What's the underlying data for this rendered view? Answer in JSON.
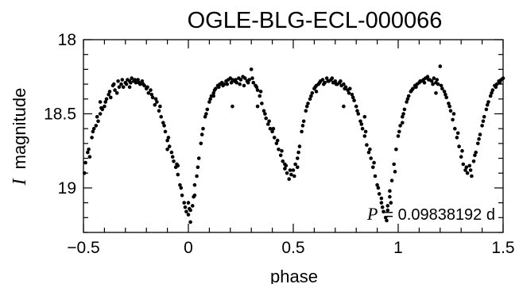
{
  "chart_data": {
    "type": "scatter",
    "title": "OGLE-BLG-ECL-000066",
    "xlabel": "phase",
    "ylabel_symbol": "I",
    "ylabel_text": "magnitude",
    "xlim": [
      -0.5,
      1.5
    ],
    "ylim": [
      19.3,
      18.0
    ],
    "y_inverted": true,
    "xticks": [
      -0.5,
      0,
      0.5,
      1,
      1.5
    ],
    "xtick_labels": [
      "−0.5",
      "0",
      "0.5",
      "1",
      "1.5"
    ],
    "yticks": [
      18,
      18.5,
      19
    ],
    "ytick_labels": [
      "18",
      "18.5",
      "19"
    ],
    "annotation": {
      "symbol": "P",
      "text": "= 0.09838192 d"
    },
    "grid": false,
    "marker_color": "#000000",
    "points": [
      [
        -0.49,
        18.83
      ],
      [
        -0.48,
        18.76
      ],
      [
        -0.47,
        18.79
      ],
      [
        -0.46,
        18.66
      ],
      [
        -0.45,
        18.6
      ],
      [
        -0.44,
        18.58
      ],
      [
        -0.43,
        18.55
      ],
      [
        -0.42,
        18.5
      ],
      [
        -0.41,
        18.47
      ],
      [
        -0.4,
        18.45
      ],
      [
        -0.39,
        18.4
      ],
      [
        -0.38,
        18.37
      ],
      [
        -0.37,
        18.39
      ],
      [
        -0.36,
        18.31
      ],
      [
        -0.35,
        18.34
      ],
      [
        -0.34,
        18.36
      ],
      [
        -0.33,
        18.32
      ],
      [
        -0.32,
        18.3
      ],
      [
        -0.31,
        18.32
      ],
      [
        -0.3,
        18.29
      ],
      [
        -0.29,
        18.27
      ],
      [
        -0.28,
        18.28
      ],
      [
        -0.27,
        18.26
      ],
      [
        -0.26,
        18.28
      ],
      [
        -0.25,
        18.29
      ],
      [
        -0.24,
        18.27
      ],
      [
        -0.23,
        18.3
      ],
      [
        -0.22,
        18.28
      ],
      [
        -0.21,
        18.31
      ],
      [
        -0.2,
        18.33
      ],
      [
        -0.19,
        18.36
      ],
      [
        -0.18,
        18.34
      ],
      [
        -0.17,
        18.39
      ],
      [
        -0.16,
        18.44
      ],
      [
        -0.15,
        18.42
      ],
      [
        -0.14,
        18.48
      ],
      [
        -0.13,
        18.52
      ],
      [
        -0.12,
        18.56
      ],
      [
        -0.11,
        18.62
      ],
      [
        -0.1,
        18.68
      ],
      [
        -0.09,
        18.72
      ],
      [
        -0.08,
        18.76
      ],
      [
        -0.07,
        18.82
      ],
      [
        -0.06,
        18.86
      ],
      [
        -0.05,
        18.91
      ],
      [
        -0.04,
        18.98
      ],
      [
        -0.03,
        19.05
      ],
      [
        -0.02,
        19.1
      ],
      [
        -0.01,
        19.16
      ],
      [
        0.0,
        19.18
      ],
      [
        0.01,
        19.23
      ],
      [
        0.02,
        19.12
      ],
      [
        0.03,
        19.05
      ],
      [
        0.04,
        18.92
      ],
      [
        0.05,
        18.8
      ],
      [
        0.06,
        18.7
      ],
      [
        0.07,
        18.6
      ],
      [
        0.08,
        18.52
      ],
      [
        0.09,
        18.47
      ],
      [
        0.1,
        18.42
      ],
      [
        0.11,
        18.38
      ],
      [
        0.12,
        18.36
      ],
      [
        0.13,
        18.33
      ],
      [
        0.14,
        18.31
      ],
      [
        0.15,
        18.3
      ],
      [
        0.16,
        18.29
      ],
      [
        0.17,
        18.3
      ],
      [
        0.18,
        18.28
      ],
      [
        0.19,
        18.27
      ],
      [
        0.2,
        18.26
      ],
      [
        0.21,
        18.27
      ],
      [
        0.22,
        18.28
      ],
      [
        0.23,
        18.29
      ],
      [
        0.24,
        18.26
      ],
      [
        0.25,
        18.27
      ],
      [
        0.26,
        18.25
      ],
      [
        0.27,
        18.26
      ],
      [
        0.28,
        18.28
      ],
      [
        0.29,
        18.27
      ],
      [
        0.3,
        18.2
      ],
      [
        0.31,
        18.29
      ],
      [
        0.32,
        18.31
      ],
      [
        0.33,
        18.34
      ],
      [
        0.34,
        18.38
      ],
      [
        0.35,
        18.43
      ],
      [
        0.36,
        18.48
      ],
      [
        0.37,
        18.53
      ],
      [
        0.38,
        18.57
      ],
      [
        0.39,
        18.6
      ],
      [
        0.4,
        18.62
      ],
      [
        0.41,
        18.66
      ],
      [
        0.42,
        18.7
      ],
      [
        0.43,
        18.74
      ],
      [
        0.44,
        18.78
      ],
      [
        0.45,
        18.82
      ],
      [
        0.46,
        18.87
      ],
      [
        0.47,
        18.9
      ],
      [
        0.48,
        18.94
      ],
      [
        0.49,
        18.91
      ],
      [
        0.5,
        18.88
      ],
      [
        0.51,
        18.84
      ],
      [
        0.52,
        18.8
      ],
      [
        0.53,
        18.72
      ],
      [
        0.54,
        18.62
      ],
      [
        0.55,
        18.55
      ],
      [
        0.56,
        18.48
      ],
      [
        0.57,
        18.43
      ],
      [
        0.58,
        18.4
      ],
      [
        0.59,
        18.36
      ],
      [
        0.6,
        18.33
      ],
      [
        0.61,
        18.31
      ],
      [
        0.62,
        18.3
      ],
      [
        0.63,
        18.28
      ],
      [
        0.64,
        18.27
      ],
      [
        0.65,
        18.29
      ],
      [
        0.66,
        18.26
      ],
      [
        0.67,
        18.28
      ],
      [
        0.68,
        18.27
      ],
      [
        0.69,
        18.29
      ],
      [
        0.7,
        18.28
      ],
      [
        0.71,
        18.3
      ],
      [
        0.72,
        18.29
      ],
      [
        0.73,
        18.31
      ],
      [
        0.74,
        18.3
      ],
      [
        0.75,
        18.32
      ],
      [
        0.76,
        18.34
      ],
      [
        0.77,
        18.33
      ],
      [
        0.78,
        18.37
      ],
      [
        0.79,
        18.41
      ],
      [
        0.8,
        18.45
      ],
      [
        0.81,
        18.5
      ],
      [
        0.82,
        18.55
      ],
      [
        0.83,
        18.6
      ],
      [
        0.84,
        18.65
      ],
      [
        0.85,
        18.71
      ],
      [
        0.86,
        18.76
      ],
      [
        0.87,
        18.8
      ],
      [
        0.88,
        18.86
      ],
      [
        0.89,
        18.92
      ],
      [
        0.9,
        18.98
      ],
      [
        0.91,
        19.04
      ],
      [
        0.92,
        19.1
      ],
      [
        0.93,
        19.16
      ],
      [
        0.94,
        19.2
      ],
      [
        0.95,
        19.15
      ],
      [
        0.96,
        19.06
      ],
      [
        0.97,
        18.95
      ],
      [
        0.98,
        18.84
      ],
      [
        0.99,
        18.74
      ],
      [
        1.0,
        18.65
      ],
      [
        1.01,
        18.58
      ],
      [
        1.02,
        18.52
      ],
      [
        1.03,
        18.47
      ],
      [
        1.04,
        18.42
      ],
      [
        1.05,
        18.38
      ],
      [
        1.06,
        18.35
      ],
      [
        1.07,
        18.33
      ],
      [
        1.08,
        18.31
      ],
      [
        1.09,
        18.3
      ],
      [
        1.1,
        18.29
      ],
      [
        1.11,
        18.28
      ],
      [
        1.12,
        18.27
      ],
      [
        1.13,
        18.26
      ],
      [
        1.14,
        18.25
      ],
      [
        1.15,
        18.27
      ],
      [
        1.16,
        18.28
      ],
      [
        1.17,
        18.26
      ],
      [
        1.18,
        18.29
      ],
      [
        1.19,
        18.3
      ],
      [
        1.2,
        18.18
      ],
      [
        1.21,
        18.33
      ],
      [
        1.22,
        18.35
      ],
      [
        1.23,
        18.39
      ],
      [
        1.24,
        18.43
      ],
      [
        1.25,
        18.48
      ],
      [
        1.26,
        18.54
      ],
      [
        1.27,
        18.6
      ],
      [
        1.28,
        18.66
      ],
      [
        1.29,
        18.72
      ],
      [
        1.3,
        18.79
      ],
      [
        1.31,
        18.84
      ],
      [
        1.32,
        18.88
      ],
      [
        1.33,
        18.9
      ],
      [
        1.34,
        18.85
      ],
      [
        1.35,
        18.92
      ],
      [
        1.36,
        18.82
      ],
      [
        1.37,
        18.76
      ],
      [
        1.38,
        18.7
      ],
      [
        1.39,
        18.64
      ],
      [
        1.4,
        18.58
      ],
      [
        1.41,
        18.52
      ],
      [
        1.42,
        18.47
      ],
      [
        1.43,
        18.42
      ],
      [
        1.44,
        18.38
      ],
      [
        1.45,
        18.34
      ],
      [
        1.46,
        18.31
      ],
      [
        1.47,
        18.3
      ],
      [
        1.48,
        18.28
      ],
      [
        1.49,
        18.27
      ],
      [
        1.5,
        18.26
      ],
      [
        -0.495,
        18.9
      ],
      [
        -0.475,
        18.74
      ],
      [
        -0.455,
        18.62
      ],
      [
        -0.435,
        18.52
      ],
      [
        -0.415,
        18.46
      ],
      [
        -0.395,
        18.42
      ],
      [
        -0.375,
        18.35
      ],
      [
        -0.355,
        18.3
      ],
      [
        -0.335,
        18.28
      ],
      [
        -0.315,
        18.27
      ],
      [
        -0.295,
        18.3
      ],
      [
        -0.275,
        18.29
      ],
      [
        -0.255,
        18.27
      ],
      [
        -0.235,
        18.29
      ],
      [
        -0.215,
        18.3
      ],
      [
        -0.195,
        18.32
      ],
      [
        -0.175,
        18.37
      ],
      [
        -0.155,
        18.4
      ],
      [
        -0.135,
        18.45
      ],
      [
        -0.115,
        18.58
      ],
      [
        -0.095,
        18.66
      ],
      [
        -0.075,
        18.79
      ],
      [
        -0.055,
        18.84
      ],
      [
        -0.035,
        19.0
      ],
      [
        -0.015,
        19.13
      ],
      [
        0.005,
        19.14
      ],
      [
        0.025,
        19.06
      ],
      [
        0.045,
        18.86
      ],
      [
        0.065,
        18.64
      ],
      [
        0.085,
        18.5
      ],
      [
        0.105,
        18.4
      ],
      [
        0.125,
        18.34
      ],
      [
        0.145,
        18.32
      ],
      [
        0.165,
        18.31
      ],
      [
        0.185,
        18.3
      ],
      [
        0.205,
        18.29
      ],
      [
        0.225,
        18.27
      ],
      [
        0.245,
        18.3
      ],
      [
        0.265,
        18.31
      ],
      [
        0.285,
        18.29
      ],
      [
        0.305,
        18.26
      ],
      [
        0.325,
        18.32
      ],
      [
        0.345,
        18.35
      ],
      [
        0.365,
        18.5
      ],
      [
        0.385,
        18.55
      ],
      [
        0.405,
        18.6
      ],
      [
        0.425,
        18.68
      ],
      [
        0.445,
        18.75
      ],
      [
        0.465,
        18.85
      ],
      [
        0.485,
        18.88
      ],
      [
        0.505,
        18.92
      ],
      [
        0.525,
        18.76
      ],
      [
        0.545,
        18.58
      ],
      [
        0.565,
        18.45
      ],
      [
        0.585,
        18.38
      ],
      [
        0.605,
        18.32
      ],
      [
        0.625,
        18.29
      ],
      [
        0.645,
        18.3
      ],
      [
        0.665,
        18.28
      ],
      [
        0.685,
        18.26
      ],
      [
        0.705,
        18.3
      ],
      [
        0.725,
        18.28
      ],
      [
        0.745,
        18.33
      ],
      [
        0.765,
        18.36
      ],
      [
        0.785,
        18.39
      ],
      [
        0.805,
        18.48
      ],
      [
        0.825,
        18.57
      ],
      [
        0.845,
        18.62
      ],
      [
        0.865,
        18.74
      ],
      [
        0.885,
        18.83
      ],
      [
        0.905,
        19.0
      ],
      [
        0.925,
        19.13
      ],
      [
        0.945,
        19.22
      ],
      [
        0.965,
        19.1
      ],
      [
        0.985,
        18.89
      ],
      [
        1.005,
        18.62
      ],
      [
        1.025,
        18.5
      ],
      [
        1.045,
        18.4
      ],
      [
        1.065,
        18.34
      ],
      [
        1.085,
        18.32
      ],
      [
        1.105,
        18.28
      ],
      [
        1.125,
        18.29
      ],
      [
        1.145,
        18.27
      ],
      [
        1.165,
        18.3
      ],
      [
        1.185,
        18.27
      ],
      [
        1.205,
        18.31
      ],
      [
        1.225,
        18.37
      ],
      [
        1.245,
        18.45
      ],
      [
        1.265,
        18.5
      ],
      [
        1.285,
        18.63
      ],
      [
        1.305,
        18.75
      ],
      [
        1.325,
        18.86
      ],
      [
        1.345,
        18.88
      ],
      [
        1.365,
        18.78
      ],
      [
        1.385,
        18.67
      ],
      [
        1.405,
        18.55
      ],
      [
        1.425,
        18.44
      ],
      [
        1.445,
        18.36
      ],
      [
        1.465,
        18.32
      ],
      [
        1.485,
        18.29
      ],
      [
        0.21,
        18.45
      ],
      [
        0.74,
        18.45
      ],
      [
        1.18,
        18.36
      ],
      [
        -0.05,
        18.85
      ],
      [
        0.96,
        19.02
      ],
      [
        0.03,
        18.98
      ],
      [
        -0.1,
        18.74
      ],
      [
        0.92,
        19.07
      ],
      [
        0.52,
        18.86
      ],
      [
        0.46,
        18.84
      ],
      [
        -0.28,
        18.32
      ],
      [
        0.12,
        18.38
      ],
      [
        0.84,
        18.52
      ],
      [
        1.02,
        18.56
      ],
      [
        -0.42,
        18.42
      ],
      [
        0.61,
        18.35
      ],
      [
        0.33,
        18.45
      ],
      [
        0.95,
        19.12
      ],
      [
        0.0,
        19.1
      ],
      [
        0.01,
        19.15
      ]
    ]
  }
}
